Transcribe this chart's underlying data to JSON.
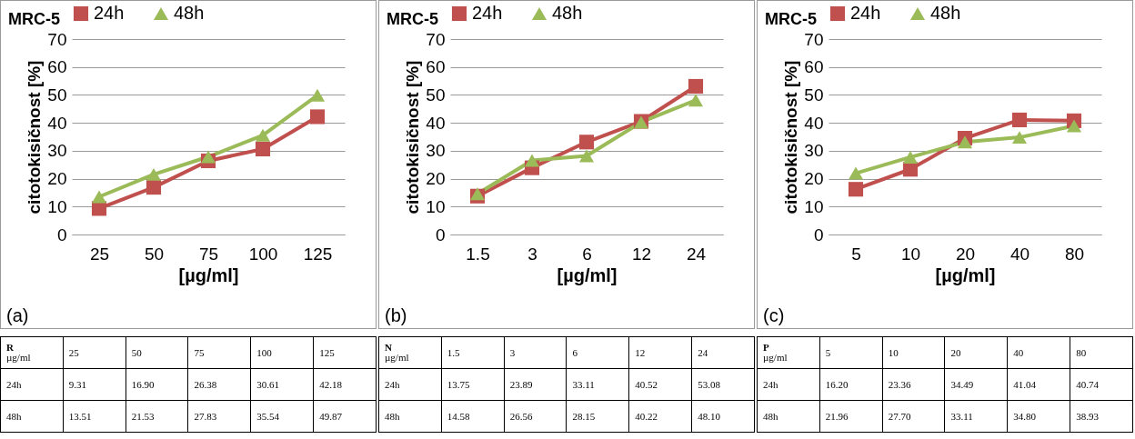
{
  "chart_data": [
    {
      "type": "line",
      "title": "MRC-5",
      "xlabel": "[µg/ml]",
      "ylabel": "citotokisičnost [%]",
      "categories": [
        "25",
        "50",
        "75",
        "100",
        "125"
      ],
      "ylim": [
        0,
        70
      ],
      "yticks": [
        0,
        10,
        20,
        30,
        40,
        50,
        60,
        70
      ],
      "grid": "y",
      "legend": "top",
      "annotations": [
        "(a)",
        "R",
        "µg/ml"
      ],
      "series": [
        {
          "name": "24h",
          "color": "#c0504d",
          "marker": "square",
          "values": [
            9.31,
            16.9,
            26.38,
            30.61,
            42.18
          ],
          "value_labels": [
            "9.31",
            "16.90",
            "26.38",
            "30.61",
            "42.18"
          ]
        },
        {
          "name": "48h",
          "color": "#9bbb59",
          "marker": "triangle",
          "values": [
            13.51,
            21.53,
            27.83,
            35.54,
            49.87
          ],
          "value_labels": [
            "13.51",
            "21.53",
            "27.83",
            "35.54",
            "49.87"
          ]
        }
      ]
    },
    {
      "type": "line",
      "title": "MRC-5",
      "xlabel": "[µg/ml]",
      "ylabel": "citotokisičnost [%]",
      "categories": [
        "1.5",
        "3",
        "6",
        "12",
        "24"
      ],
      "ylim": [
        0,
        70
      ],
      "yticks": [
        0,
        10,
        20,
        30,
        40,
        50,
        60,
        70
      ],
      "grid": "y",
      "legend": "top",
      "annotations": [
        "(b)",
        "N",
        "µg/ml"
      ],
      "series": [
        {
          "name": "24h",
          "color": "#c0504d",
          "marker": "square",
          "values": [
            13.75,
            23.89,
            33.11,
            40.52,
            53.08
          ],
          "value_labels": [
            "13.75",
            "23.89",
            "33.11",
            "40.52",
            "53.08"
          ]
        },
        {
          "name": "48h",
          "color": "#9bbb59",
          "marker": "triangle",
          "values": [
            14.58,
            26.56,
            28.15,
            40.22,
            48.1
          ],
          "value_labels": [
            "14.58",
            "26.56",
            "28.15",
            "40.22",
            "48.10"
          ]
        }
      ]
    },
    {
      "type": "line",
      "title": "MRC-5",
      "xlabel": "[µg/ml]",
      "ylabel": "citotokisičnost [%]",
      "categories": [
        "5",
        "10",
        "20",
        "40",
        "80"
      ],
      "ylim": [
        0,
        70
      ],
      "yticks": [
        0,
        10,
        20,
        30,
        40,
        50,
        60,
        70
      ],
      "grid": "y",
      "legend": "top",
      "annotations": [
        "(c)",
        "P",
        "µg/ml"
      ],
      "series": [
        {
          "name": "24h",
          "color": "#c0504d",
          "marker": "square",
          "values": [
            16.2,
            23.36,
            34.49,
            41.04,
            40.74
          ],
          "value_labels": [
            "16.20",
            "23.36",
            "34.49",
            "41.04",
            "40.74"
          ]
        },
        {
          "name": "48h",
          "color": "#9bbb59",
          "marker": "triangle",
          "values": [
            21.96,
            27.7,
            33.11,
            34.8,
            38.93
          ],
          "value_labels": [
            "21.96",
            "27.70",
            "33.11",
            "34.80",
            "38.93"
          ]
        }
      ]
    }
  ]
}
